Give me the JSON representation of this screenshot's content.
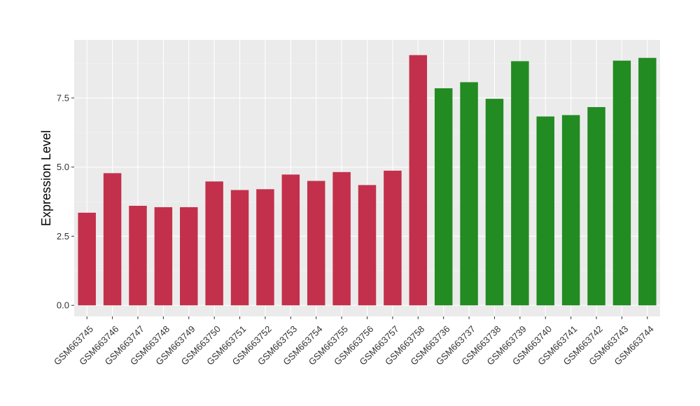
{
  "chart_data": {
    "type": "bar",
    "title": "",
    "xlabel": "",
    "ylabel": "Expression Level",
    "ylim": [
      -0.4,
      9.6
    ],
    "yticks": [
      0.0,
      2.5,
      5.0,
      7.5
    ],
    "ytick_labels": [
      "0.0",
      "2.5",
      "5.0",
      "7.5"
    ],
    "grid": true,
    "background": "#ebebeb",
    "categories": [
      "GSM663745",
      "GSM663746",
      "GSM663747",
      "GSM663748",
      "GSM663749",
      "GSM663750",
      "GSM663751",
      "GSM663752",
      "GSM663753",
      "GSM663754",
      "GSM663755",
      "GSM663756",
      "GSM663757",
      "GSM663758",
      "GSM663736",
      "GSM663737",
      "GSM663738",
      "GSM663739",
      "GSM663740",
      "GSM663741",
      "GSM663742",
      "GSM663743",
      "GSM663744"
    ],
    "values": [
      3.35,
      4.78,
      3.6,
      3.55,
      3.55,
      4.48,
      4.17,
      4.2,
      4.73,
      4.5,
      4.82,
      4.35,
      4.87,
      9.05,
      7.85,
      8.07,
      7.47,
      8.83,
      6.83,
      6.88,
      7.17,
      8.85,
      8.95
    ],
    "colors": [
      "#c3304b",
      "#c3304b",
      "#c3304b",
      "#c3304b",
      "#c3304b",
      "#c3304b",
      "#c3304b",
      "#c3304b",
      "#c3304b",
      "#c3304b",
      "#c3304b",
      "#c3304b",
      "#c3304b",
      "#c3304b",
      "#228b22",
      "#228b22",
      "#228b22",
      "#228b22",
      "#228b22",
      "#228b22",
      "#228b22",
      "#228b22",
      "#228b22"
    ]
  }
}
